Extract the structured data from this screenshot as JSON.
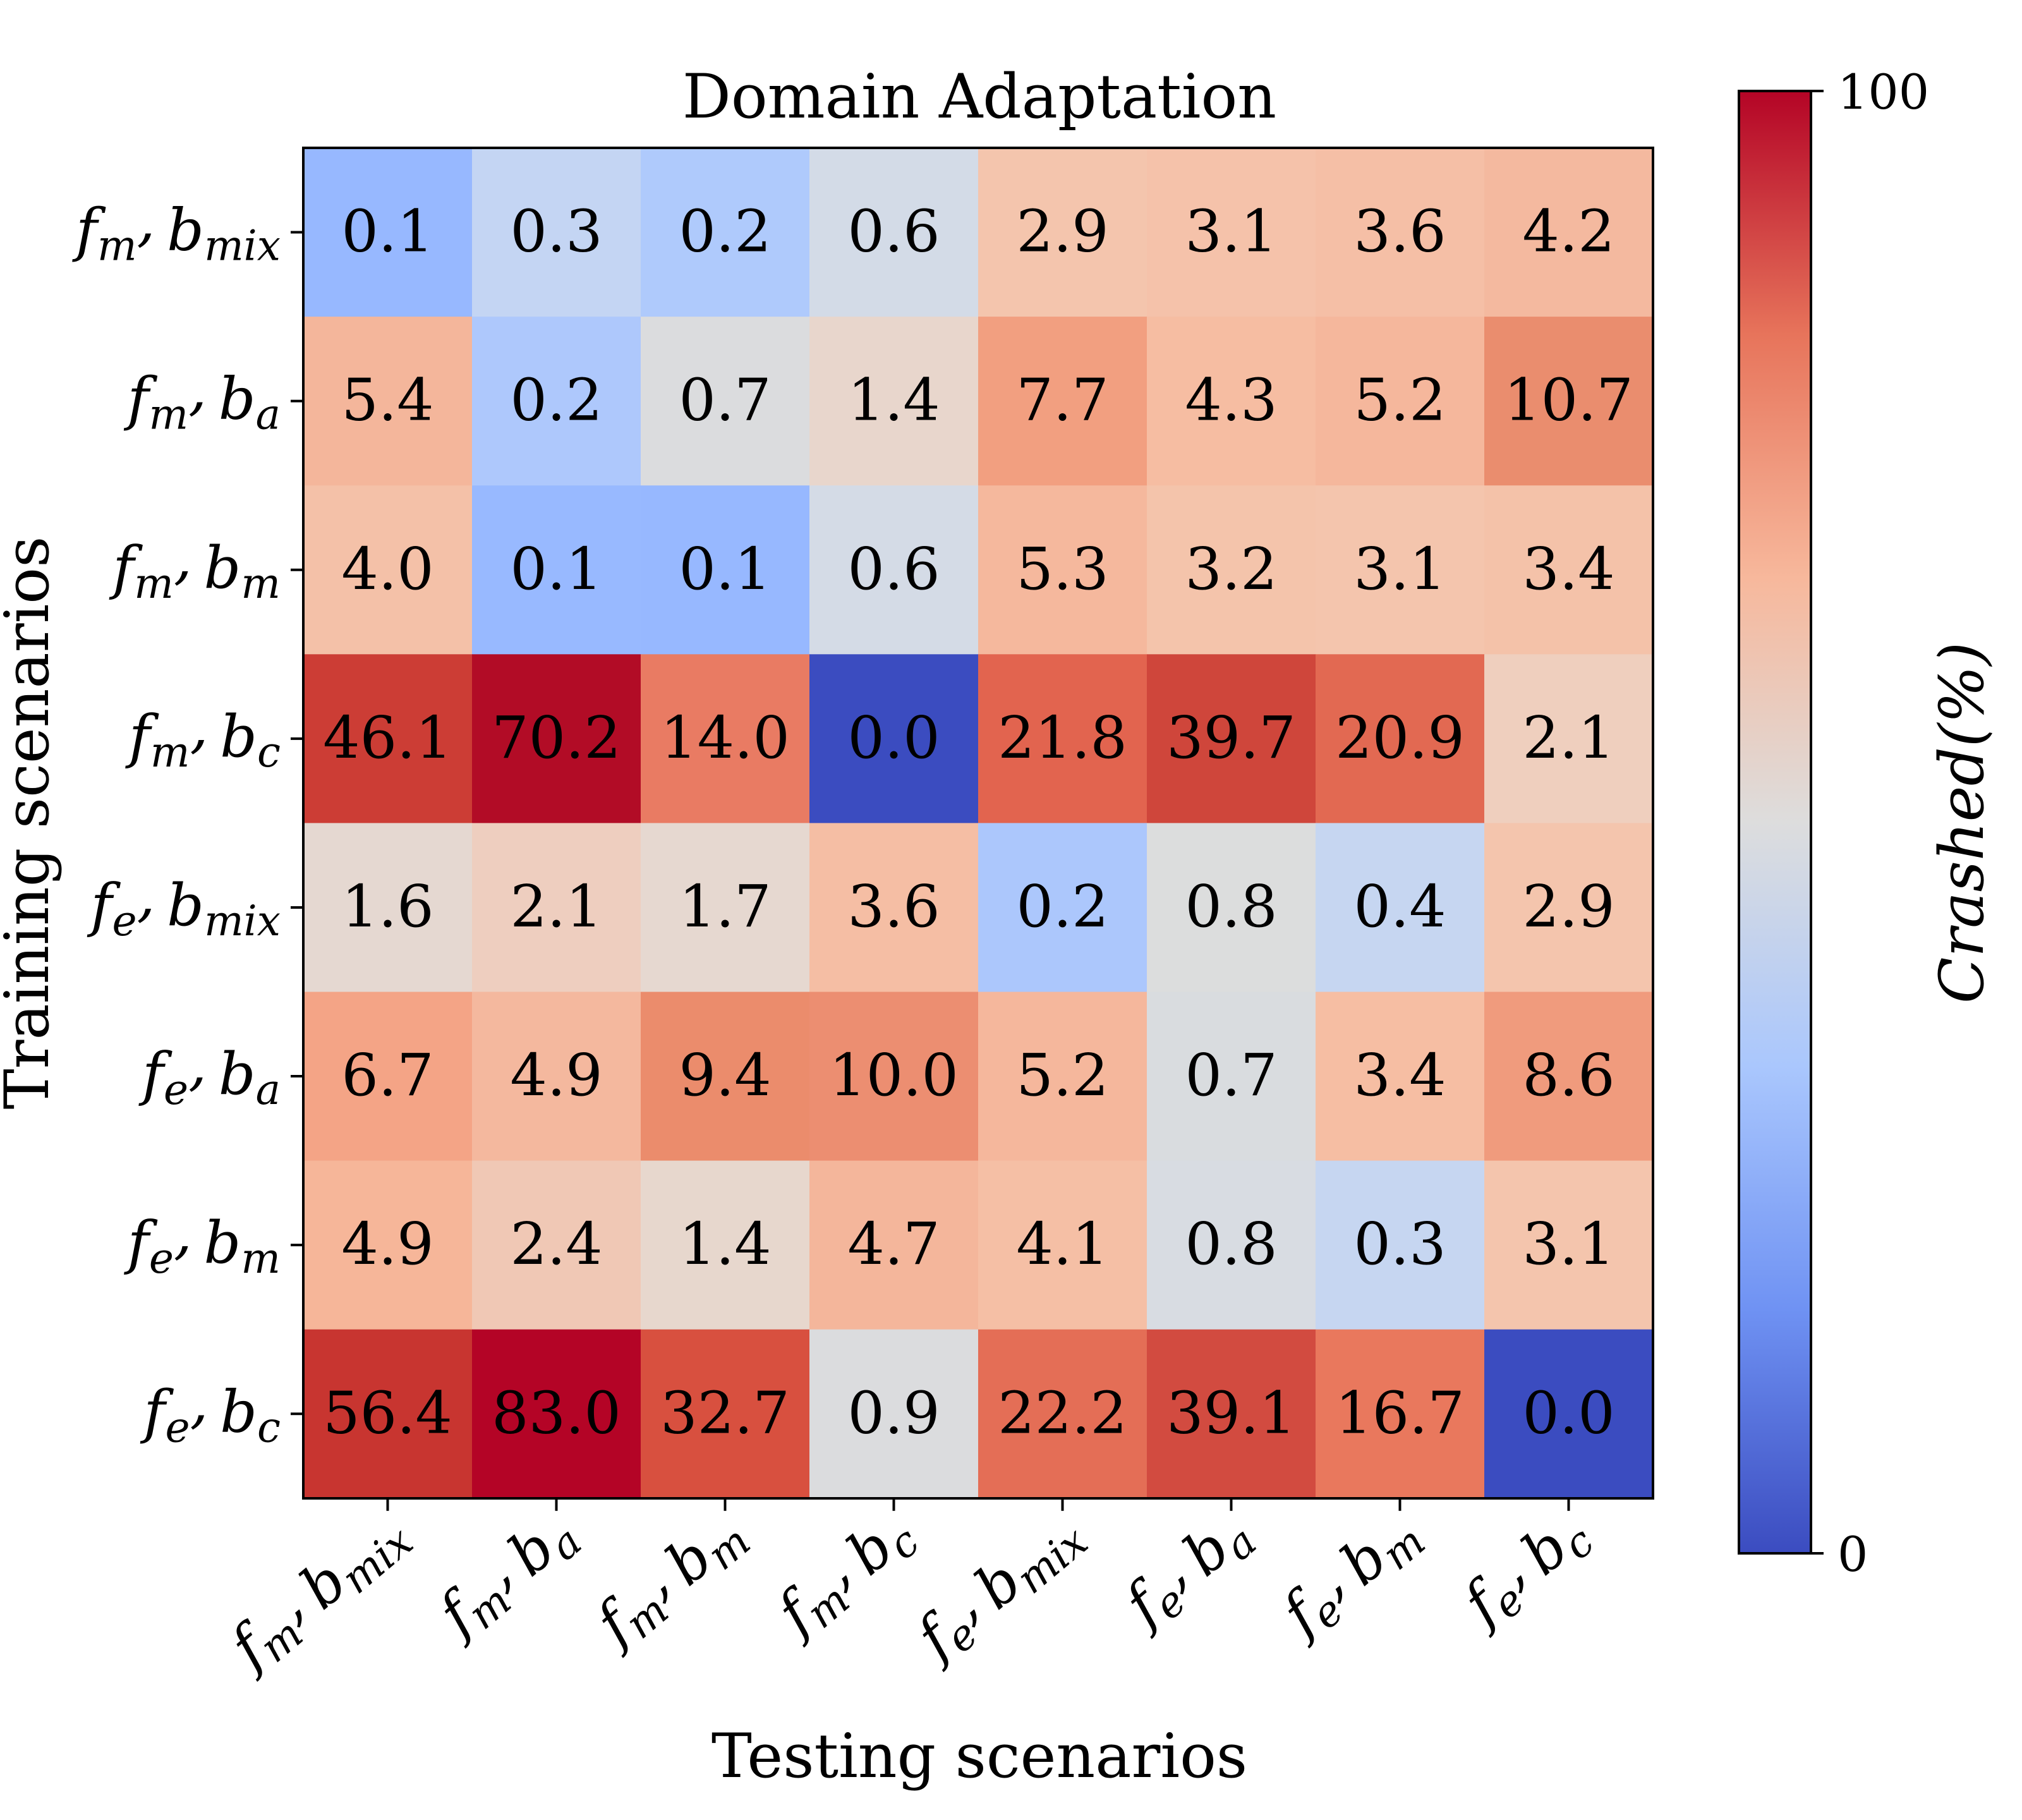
{
  "chart_data": {
    "type": "heatmap",
    "title": "Domain Adaptation",
    "xlabel": "Testing scenarios",
    "ylabel": "Training scenarios",
    "colorbar_label": "Crashed(%)",
    "colorbar_ticks": [
      "0",
      "100"
    ],
    "vmin": 0,
    "vmax": 100,
    "colormap": "coolwarm",
    "row_labels": [
      {
        "f": "f",
        "fs": "m",
        "b": "b",
        "bs": "mix"
      },
      {
        "f": "f",
        "fs": "m",
        "b": "b",
        "bs": "a"
      },
      {
        "f": "f",
        "fs": "m",
        "b": "b",
        "bs": "m"
      },
      {
        "f": "f",
        "fs": "m",
        "b": "b",
        "bs": "c"
      },
      {
        "f": "f",
        "fs": "e",
        "b": "b",
        "bs": "mix"
      },
      {
        "f": "f",
        "fs": "e",
        "b": "b",
        "bs": "a"
      },
      {
        "f": "f",
        "fs": "e",
        "b": "b",
        "bs": "m"
      },
      {
        "f": "f",
        "fs": "e",
        "b": "b",
        "bs": "c"
      }
    ],
    "col_labels": [
      {
        "f": "f",
        "fs": "m",
        "b": "b",
        "bs": "mix"
      },
      {
        "f": "f",
        "fs": "m",
        "b": "b",
        "bs": "a"
      },
      {
        "f": "f",
        "fs": "m",
        "b": "b",
        "bs": "m"
      },
      {
        "f": "f",
        "fs": "m",
        "b": "b",
        "bs": "c"
      },
      {
        "f": "f",
        "fs": "e",
        "b": "b",
        "bs": "mix"
      },
      {
        "f": "f",
        "fs": "e",
        "b": "b",
        "bs": "a"
      },
      {
        "f": "f",
        "fs": "e",
        "b": "b",
        "bs": "m"
      },
      {
        "f": "f",
        "fs": "e",
        "b": "b",
        "bs": "c"
      }
    ],
    "values": [
      [
        "0.1",
        "0.3",
        "0.2",
        "0.6",
        "2.9",
        "3.1",
        "3.6",
        "4.2"
      ],
      [
        "5.4",
        "0.2",
        "0.7",
        "1.4",
        "7.7",
        "4.3",
        "5.2",
        "10.7"
      ],
      [
        "4.0",
        "0.1",
        "0.1",
        "0.6",
        "5.3",
        "3.2",
        "3.1",
        "3.4"
      ],
      [
        "46.1",
        "70.2",
        "14.0",
        "0.0",
        "21.8",
        "39.7",
        "20.9",
        "2.1"
      ],
      [
        "1.6",
        "2.1",
        "1.7",
        "3.6",
        "0.2",
        "0.8",
        "0.4",
        "2.9"
      ],
      [
        "6.7",
        "4.9",
        "9.4",
        "10.0",
        "5.2",
        "0.7",
        "3.4",
        "8.6"
      ],
      [
        "4.9",
        "2.4",
        "1.4",
        "4.7",
        "4.1",
        "0.8",
        "0.3",
        "3.1"
      ],
      [
        "56.4",
        "83.0",
        "32.7",
        "0.9",
        "22.2",
        "39.1",
        "16.7",
        "0.0"
      ]
    ],
    "cell_colors": [
      [
        "#97b8ff",
        "#c4d5f3",
        "#afcafc",
        "#d3dbe7",
        "#f4c5ad",
        "#f5c2aa",
        "#f5bfa6",
        "#f4b99f"
      ],
      [
        "#f4b69b",
        "#aec8fc",
        "#dbdcde",
        "#e8d6cc",
        "#f29f80",
        "#f6bda2",
        "#f5b79c",
        "#ea8d6e"
      ],
      [
        "#f4c1a8",
        "#98b9ff",
        "#97b8ff",
        "#d4dbe6",
        "#f5b89d",
        "#f4c4ab",
        "#f4c5ad",
        "#f4c2a9"
      ],
      [
        "#cc3d35",
        "#b20c26",
        "#e97b63",
        "#3b4cc0",
        "#e2644f",
        "#cf463b",
        "#e26952",
        "#efcfbe"
      ],
      [
        "#e5d8d1",
        "#eecebf",
        "#e6d8d0",
        "#f5bea4",
        "#acc7fc",
        "#dcdddd",
        "#c6d6f1",
        "#f4c5ad"
      ],
      [
        "#f4a486",
        "#f4b89e",
        "#eb8c6c",
        "#ec8e71",
        "#f5b79c",
        "#d9dcdf",
        "#f6bea3",
        "#f09b7d"
      ],
      [
        "#f6b699",
        "#f0c8b5",
        "#e7d7cd",
        "#f4b69b",
        "#f5bfa5",
        "#d8dce2",
        "#c6d6f1",
        "#f4c5ad"
      ],
      [
        "#c83530",
        "#b40426",
        "#d8503f",
        "#dbdcde",
        "#e46e56",
        "#d24b40",
        "#e9785d",
        "#3b4cc0"
      ]
    ],
    "colorbar_stops": [
      "#3b4cc0",
      "#6f92f3",
      "#aac7fd",
      "#dddddd",
      "#f7b89c",
      "#e7745b",
      "#b40426"
    ]
  }
}
